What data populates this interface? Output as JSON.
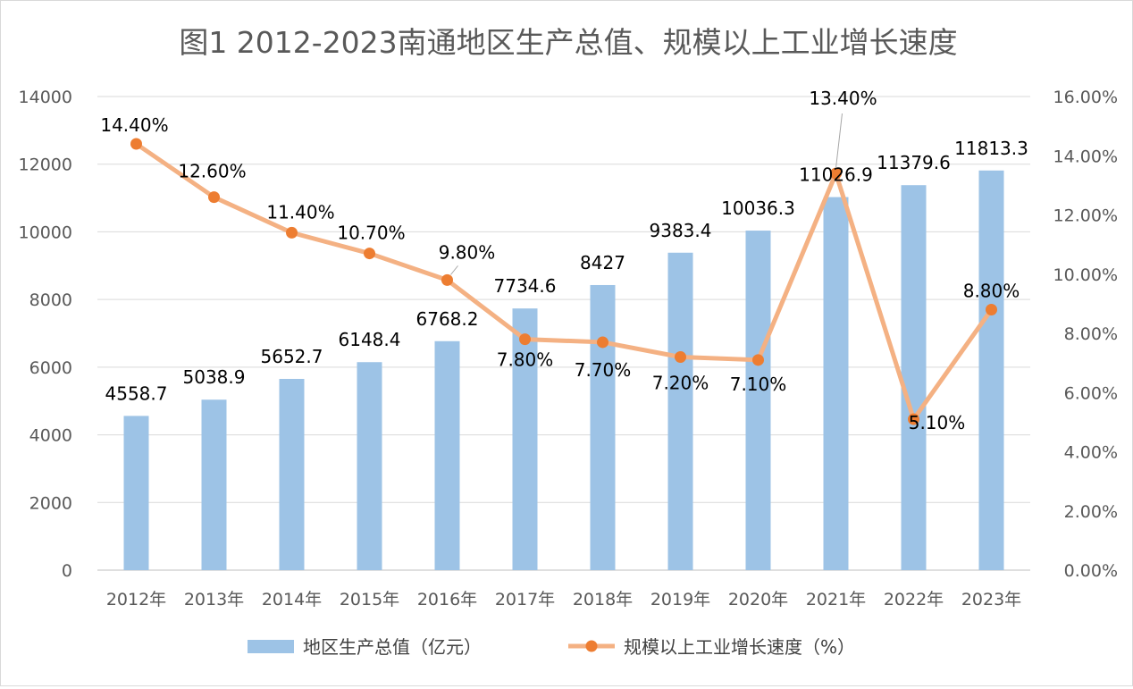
{
  "chart_data": {
    "type": "bar",
    "title": "图1 2012-2023南通地区生产总值、规模以上工业增长速度",
    "categories": [
      "2012年",
      "2013年",
      "2014年",
      "2015年",
      "2016年",
      "2017年",
      "2018年",
      "2019年",
      "2020年",
      "2021年",
      "2022年",
      "2023年"
    ],
    "series": [
      {
        "name": "地区生产总值（亿元）",
        "type": "bar",
        "axis": "left",
        "color": "#9dc3e6",
        "values": [
          4558.7,
          5038.9,
          5652.7,
          6148.4,
          6768.2,
          7734.6,
          8427,
          9383.4,
          10036.3,
          11026.9,
          11379.6,
          11813.3
        ],
        "labels": [
          "4558.7",
          "5038.9",
          "5652.7",
          "6148.4",
          "6768.2",
          "7734.6",
          "8427",
          "9383.4",
          "10036.3",
          "11026.9",
          "11379.6",
          "11813.3"
        ]
      },
      {
        "name": "规模以上工业增长速度（%）",
        "type": "line",
        "axis": "right",
        "color": "#f4b183",
        "marker_color": "#ed7d31",
        "values": [
          14.4,
          12.6,
          11.4,
          10.7,
          9.8,
          7.8,
          7.7,
          7.2,
          7.1,
          13.4,
          5.1,
          8.8
        ],
        "labels": [
          "14.40%",
          "12.60%",
          "11.40%",
          "10.70%",
          "9.80%",
          "7.80%",
          "7.70%",
          "7.20%",
          "7.10%",
          "13.40%",
          "5.10%",
          "8.80%"
        ]
      }
    ],
    "y_left": {
      "range": [
        0,
        14000
      ],
      "ticks": [
        "0",
        "2000",
        "4000",
        "6000",
        "8000",
        "10000",
        "12000",
        "14000"
      ]
    },
    "y_right": {
      "range": [
        0,
        16
      ],
      "ticks": [
        "0.00%",
        "2.00%",
        "4.00%",
        "6.00%",
        "8.00%",
        "10.00%",
        "12.00%",
        "14.00%",
        "16.00%"
      ]
    },
    "grid": true,
    "legend": "bottom"
  }
}
